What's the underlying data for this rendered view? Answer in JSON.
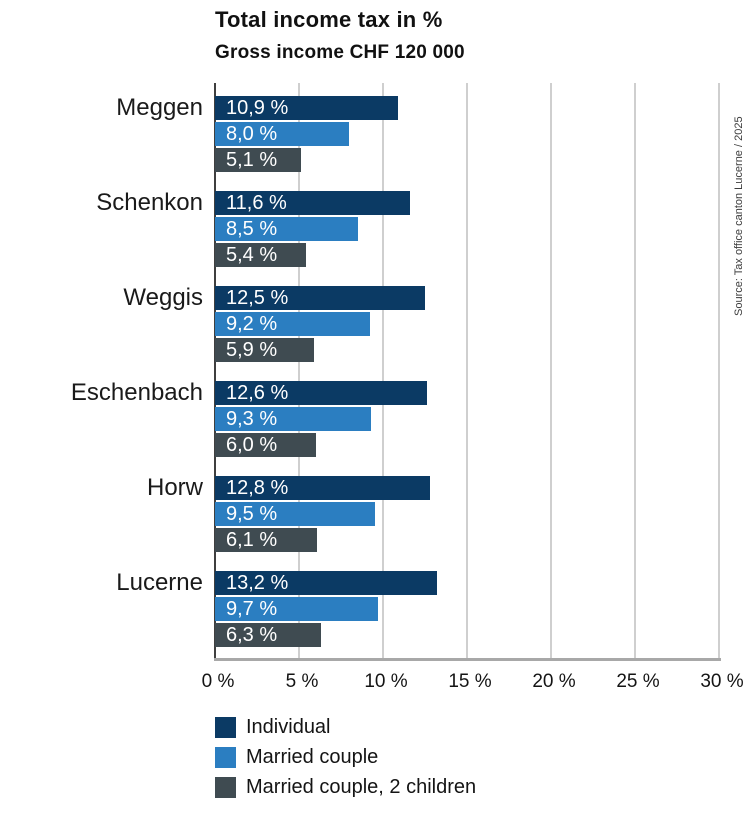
{
  "header": {
    "title": "Total income tax in %",
    "subtitle": "Gross income CHF 120 000"
  },
  "source_note": "Source: Tax office canton Lucerne / 2025",
  "colors": {
    "individual": "#0b3a64",
    "married_couple": "#2b7ec1",
    "married_couple_2_children": "#3f4b51",
    "gridline": "#cfcfcf",
    "zero_axis": "#3f3f3f",
    "baseline": "#a8a8a8",
    "value_label_text": "#ffffff",
    "text": "#141414"
  },
  "chart_data": {
    "type": "bar",
    "orientation": "horizontal",
    "title": "Total income tax in %",
    "subtitle": "Gross income CHF 120 000",
    "categories": [
      "Meggen",
      "Schenkon",
      "Weggis",
      "Eschenbach",
      "Horw",
      "Lucerne"
    ],
    "series": [
      {
        "name": "Individual",
        "color": "#0b3a64",
        "values": [
          10.9,
          11.6,
          12.5,
          12.6,
          12.8,
          13.2
        ],
        "labels": [
          "10,9 %",
          "11,6 %",
          "12,5 %",
          "12,6 %",
          "12,8 %",
          "13,2 %"
        ]
      },
      {
        "name": "Married couple",
        "color": "#2b7ec1",
        "values": [
          8.0,
          8.5,
          9.2,
          9.3,
          9.5,
          9.7
        ],
        "labels": [
          "8,0 %",
          "8,5 %",
          "9,2 %",
          "9,3 %",
          "9,5 %",
          "9,7 %"
        ]
      },
      {
        "name": "Married couple, 2 children",
        "color": "#3f4b51",
        "values": [
          5.1,
          5.4,
          5.9,
          6.0,
          6.1,
          6.3
        ],
        "labels": [
          "5,1 %",
          "5,4 %",
          "5,9 %",
          "6,0 %",
          "6,1 %",
          "6,3 %"
        ]
      }
    ],
    "xlabel": "",
    "ylabel": "",
    "xlim": [
      0,
      30
    ],
    "x_ticks": [
      0,
      5,
      10,
      15,
      20,
      25,
      30
    ],
    "x_tick_labels": [
      "0 %",
      "5 %",
      "10 %",
      "15 %",
      "20 %",
      "25 %",
      "30 %"
    ],
    "grid": true,
    "legend_position": "bottom",
    "value_labels_inside_bars": true
  }
}
